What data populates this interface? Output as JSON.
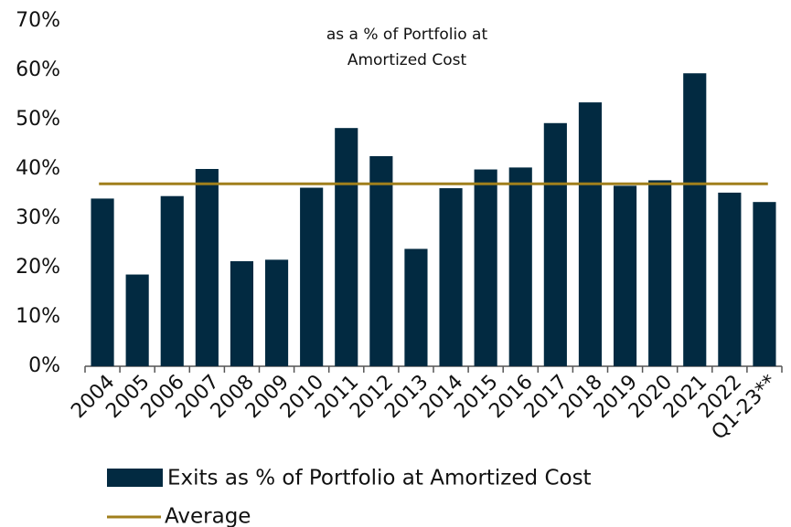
{
  "chart_data": {
    "type": "bar",
    "annotation": [
      "as a % of Portfolio at",
      "Amortized Cost"
    ],
    "categories": [
      "2004",
      "2005",
      "2006",
      "2007",
      "2008",
      "2009",
      "2010",
      "2011",
      "2012",
      "2013",
      "2014",
      "2015",
      "2016",
      "2017",
      "2018",
      "2019",
      "2020",
      "2021",
      "2022",
      "Q1-23**"
    ],
    "series": [
      {
        "name": "Exits as % of Portfolio at Amortized Cost",
        "color": "#022a41",
        "values": [
          34,
          18.6,
          34.5,
          40,
          21.3,
          21.6,
          36.2,
          48.3,
          42.6,
          23.8,
          36.1,
          39.9,
          40.3,
          49.3,
          53.5,
          36.6,
          37.7,
          59.4,
          35.2,
          33.3
        ]
      }
    ],
    "average": {
      "name": "Average",
      "color": "#a07f1c",
      "value": 37
    },
    "ylim": [
      0,
      70
    ],
    "yticks": [
      {
        "value": 0,
        "label": "0%"
      },
      {
        "value": 10,
        "label": "10%"
      },
      {
        "value": 20,
        "label": "20%"
      },
      {
        "value": 30,
        "label": "30%"
      },
      {
        "value": 40,
        "label": "40%"
      },
      {
        "value": 50,
        "label": "50%"
      },
      {
        "value": 60,
        "label": "60%"
      },
      {
        "value": 70,
        "label": "70%"
      }
    ],
    "grid": false
  }
}
